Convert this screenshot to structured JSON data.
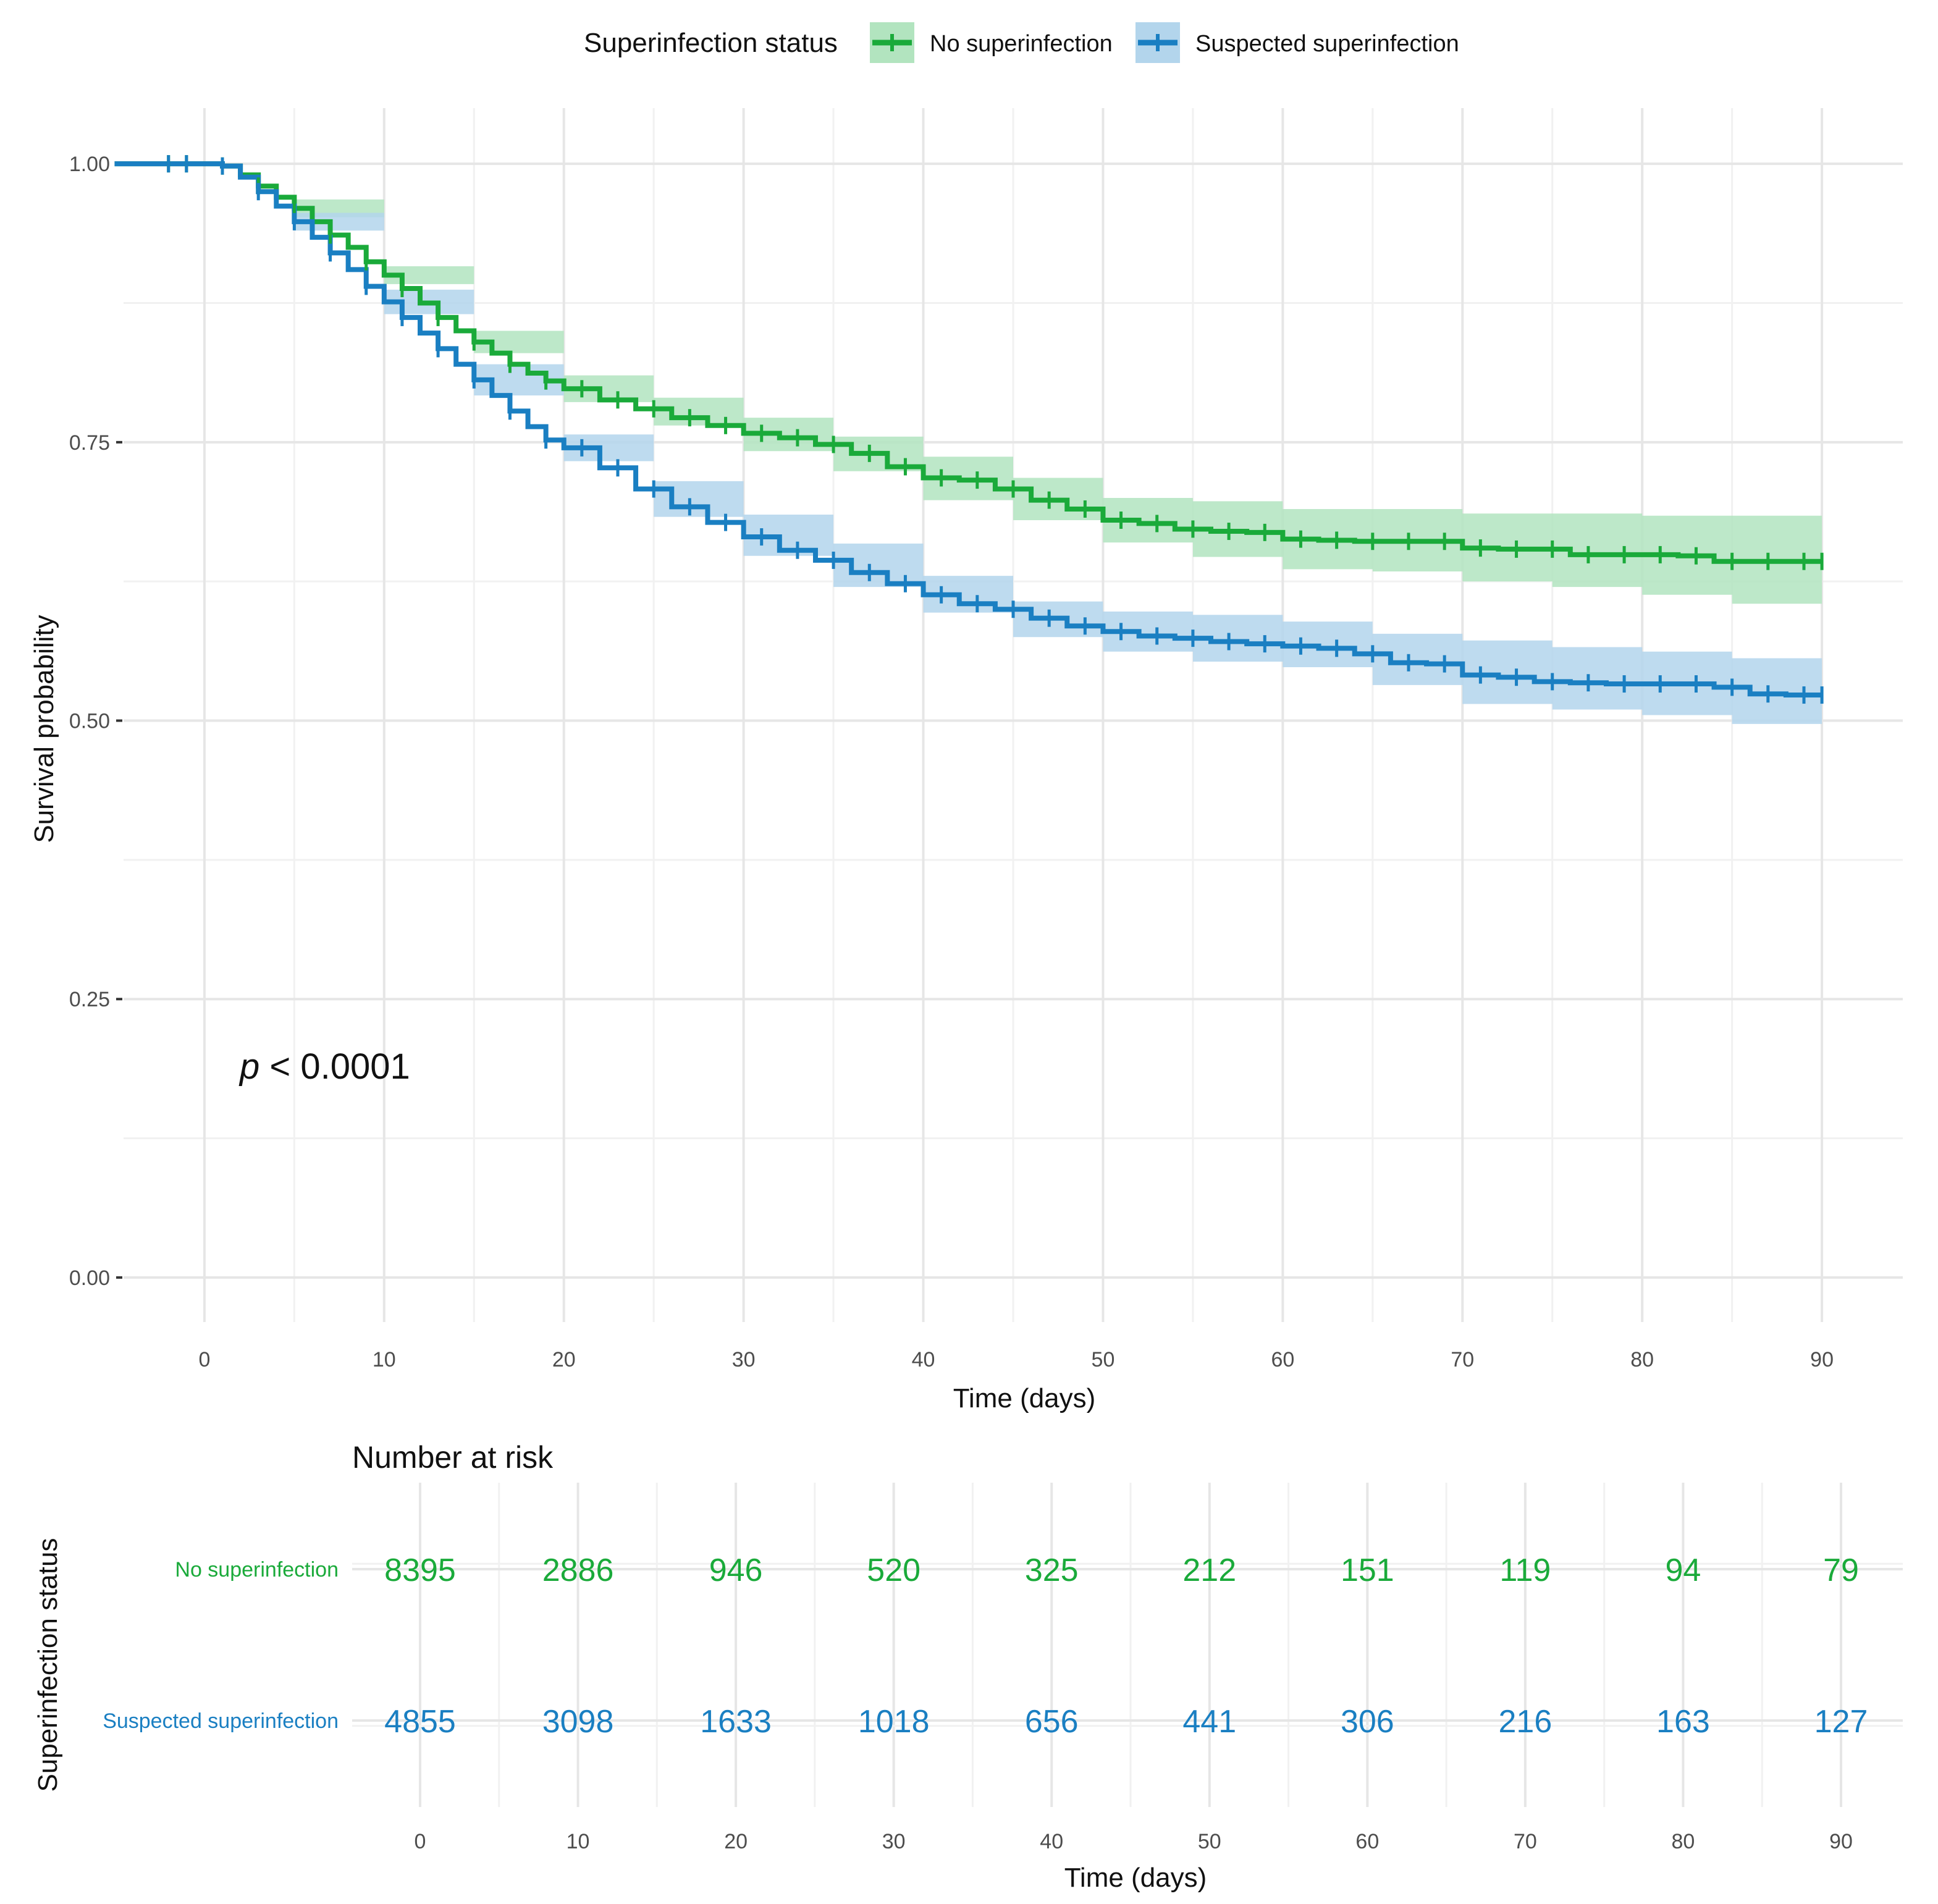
{
  "chart_data": {
    "type": "line",
    "subtype": "kaplan-meier",
    "xlabel": "Time (days)",
    "ylabel": "Survival probability",
    "xlim": [
      -4.5,
      94.5
    ],
    "ylim": [
      -0.04,
      1.05
    ],
    "x_ticks": [
      0,
      10,
      20,
      30,
      40,
      50,
      60,
      70,
      80,
      90
    ],
    "y_ticks": [
      0.0,
      0.25,
      0.5,
      0.75,
      1.0
    ],
    "y_tick_labels": [
      "0.00",
      "0.25",
      "0.50",
      "0.75",
      "1.00"
    ],
    "grid": true,
    "legend": {
      "title": "Superinfection status",
      "position": "top",
      "entries": [
        "No superinfection",
        "Suspected superinfection"
      ]
    },
    "annotation": {
      "prefix": "p",
      "text": " < 0.0001"
    },
    "colors": {
      "No superinfection": "#1aaa3a",
      "Suspected superinfection": "#1a7fc2"
    },
    "band_colors": {
      "No superinfection": "#b2e4bf",
      "Suspected superinfection": "#b3d5ec"
    },
    "series": [
      {
        "name": "No superinfection",
        "points": [
          [
            -5,
            1.0
          ],
          [
            0,
            1.0
          ],
          [
            1,
            0.998
          ],
          [
            2,
            0.99
          ],
          [
            3,
            0.98
          ],
          [
            4,
            0.97
          ],
          [
            5,
            0.96
          ],
          [
            6,
            0.948
          ],
          [
            7,
            0.936
          ],
          [
            8,
            0.925
          ],
          [
            9,
            0.912
          ],
          [
            10,
            0.9
          ],
          [
            11,
            0.888
          ],
          [
            12,
            0.875
          ],
          [
            13,
            0.862
          ],
          [
            14,
            0.85
          ],
          [
            15,
            0.84
          ],
          [
            16,
            0.83
          ],
          [
            17,
            0.82
          ],
          [
            18,
            0.812
          ],
          [
            19,
            0.805
          ],
          [
            20,
            0.798
          ],
          [
            22,
            0.788
          ],
          [
            24,
            0.78
          ],
          [
            26,
            0.772
          ],
          [
            28,
            0.765
          ],
          [
            30,
            0.758
          ],
          [
            32,
            0.754
          ],
          [
            34,
            0.748
          ],
          [
            36,
            0.74
          ],
          [
            38,
            0.728
          ],
          [
            40,
            0.718
          ],
          [
            42,
            0.716
          ],
          [
            44,
            0.708
          ],
          [
            46,
            0.698
          ],
          [
            48,
            0.69
          ],
          [
            50,
            0.68
          ],
          [
            52,
            0.677
          ],
          [
            54,
            0.672
          ],
          [
            56,
            0.67
          ],
          [
            58,
            0.669
          ],
          [
            60,
            0.663
          ],
          [
            62,
            0.662
          ],
          [
            64,
            0.661
          ],
          [
            66,
            0.661
          ],
          [
            68,
            0.661
          ],
          [
            70,
            0.655
          ],
          [
            72,
            0.654
          ],
          [
            74,
            0.654
          ],
          [
            76,
            0.649
          ],
          [
            78,
            0.649
          ],
          [
            80,
            0.649
          ],
          [
            82,
            0.648
          ],
          [
            84,
            0.643
          ],
          [
            86,
            0.643
          ],
          [
            88,
            0.643
          ],
          [
            90,
            0.643
          ]
        ],
        "lower": [
          [
            -5,
            1.0
          ],
          [
            0,
            1.0
          ],
          [
            5,
            0.952
          ],
          [
            10,
            0.892
          ],
          [
            15,
            0.83
          ],
          [
            20,
            0.786
          ],
          [
            25,
            0.765
          ],
          [
            30,
            0.742
          ],
          [
            35,
            0.724
          ],
          [
            40,
            0.698
          ],
          [
            45,
            0.68
          ],
          [
            50,
            0.66
          ],
          [
            55,
            0.647
          ],
          [
            60,
            0.636
          ],
          [
            65,
            0.634
          ],
          [
            70,
            0.625
          ],
          [
            75,
            0.62
          ],
          [
            80,
            0.613
          ],
          [
            85,
            0.605
          ],
          [
            90,
            0.603
          ]
        ],
        "upper": [
          [
            -5,
            1.0
          ],
          [
            0,
            1.0
          ],
          [
            5,
            0.968
          ],
          [
            10,
            0.908
          ],
          [
            15,
            0.85
          ],
          [
            20,
            0.81
          ],
          [
            25,
            0.79
          ],
          [
            30,
            0.772
          ],
          [
            35,
            0.755
          ],
          [
            40,
            0.737
          ],
          [
            45,
            0.718
          ],
          [
            50,
            0.7
          ],
          [
            55,
            0.697
          ],
          [
            60,
            0.69
          ],
          [
            65,
            0.69
          ],
          [
            70,
            0.686
          ],
          [
            75,
            0.686
          ],
          [
            80,
            0.684
          ],
          [
            85,
            0.684
          ],
          [
            90,
            0.684
          ]
        ],
        "censor_times": [
          -2,
          -1,
          1,
          3,
          5,
          7,
          9,
          11,
          13,
          15,
          17,
          19,
          21,
          23,
          25,
          27,
          29,
          31,
          33,
          35,
          37,
          39,
          41,
          43,
          45,
          47,
          49,
          51,
          53,
          55,
          57,
          59,
          61,
          63,
          65,
          67,
          69,
          71,
          73,
          75,
          77,
          79,
          81,
          83,
          85,
          87,
          89,
          90
        ]
      },
      {
        "name": "Suspected superinfection",
        "points": [
          [
            -5,
            1.0
          ],
          [
            0,
            1.0
          ],
          [
            1,
            0.998
          ],
          [
            2,
            0.988
          ],
          [
            3,
            0.975
          ],
          [
            4,
            0.962
          ],
          [
            5,
            0.948
          ],
          [
            6,
            0.934
          ],
          [
            7,
            0.92
          ],
          [
            8,
            0.905
          ],
          [
            9,
            0.89
          ],
          [
            10,
            0.876
          ],
          [
            11,
            0.862
          ],
          [
            12,
            0.848
          ],
          [
            13,
            0.834
          ],
          [
            14,
            0.82
          ],
          [
            15,
            0.806
          ],
          [
            16,
            0.792
          ],
          [
            17,
            0.778
          ],
          [
            18,
            0.764
          ],
          [
            19,
            0.752
          ],
          [
            20,
            0.745
          ],
          [
            22,
            0.727
          ],
          [
            24,
            0.708
          ],
          [
            26,
            0.692
          ],
          [
            28,
            0.678
          ],
          [
            30,
            0.665
          ],
          [
            32,
            0.653
          ],
          [
            34,
            0.644
          ],
          [
            36,
            0.633
          ],
          [
            38,
            0.623
          ],
          [
            40,
            0.613
          ],
          [
            42,
            0.605
          ],
          [
            44,
            0.6
          ],
          [
            46,
            0.592
          ],
          [
            48,
            0.585
          ],
          [
            50,
            0.58
          ],
          [
            52,
            0.576
          ],
          [
            54,
            0.574
          ],
          [
            56,
            0.571
          ],
          [
            58,
            0.569
          ],
          [
            60,
            0.567
          ],
          [
            62,
            0.565
          ],
          [
            64,
            0.56
          ],
          [
            66,
            0.552
          ],
          [
            68,
            0.551
          ],
          [
            70,
            0.541
          ],
          [
            72,
            0.539
          ],
          [
            74,
            0.535
          ],
          [
            76,
            0.534
          ],
          [
            78,
            0.533
          ],
          [
            80,
            0.533
          ],
          [
            82,
            0.533
          ],
          [
            84,
            0.53
          ],
          [
            86,
            0.524
          ],
          [
            88,
            0.523
          ],
          [
            90,
            0.523
          ]
        ],
        "lower": [
          [
            -5,
            1.0
          ],
          [
            0,
            1.0
          ],
          [
            5,
            0.94
          ],
          [
            10,
            0.865
          ],
          [
            15,
            0.792
          ],
          [
            20,
            0.733
          ],
          [
            25,
            0.683
          ],
          [
            30,
            0.648
          ],
          [
            35,
            0.62
          ],
          [
            40,
            0.597
          ],
          [
            45,
            0.575
          ],
          [
            50,
            0.562
          ],
          [
            55,
            0.553
          ],
          [
            60,
            0.548
          ],
          [
            65,
            0.532
          ],
          [
            70,
            0.515
          ],
          [
            75,
            0.51
          ],
          [
            80,
            0.505
          ],
          [
            85,
            0.497
          ],
          [
            90,
            0.49
          ]
        ],
        "upper": [
          [
            -5,
            1.0
          ],
          [
            0,
            1.0
          ],
          [
            5,
            0.956
          ],
          [
            10,
            0.887
          ],
          [
            15,
            0.82
          ],
          [
            20,
            0.757
          ],
          [
            25,
            0.715
          ],
          [
            30,
            0.685
          ],
          [
            35,
            0.659
          ],
          [
            40,
            0.63
          ],
          [
            45,
            0.607
          ],
          [
            50,
            0.598
          ],
          [
            55,
            0.595
          ],
          [
            60,
            0.589
          ],
          [
            65,
            0.578
          ],
          [
            70,
            0.572
          ],
          [
            75,
            0.566
          ],
          [
            80,
            0.562
          ],
          [
            85,
            0.556
          ],
          [
            90,
            0.555
          ]
        ],
        "censor_times": [
          -2,
          -1,
          1,
          3,
          5,
          7,
          9,
          11,
          13,
          15,
          17,
          19,
          21,
          23,
          25,
          27,
          29,
          31,
          33,
          35,
          37,
          39,
          41,
          43,
          45,
          47,
          49,
          51,
          53,
          55,
          57,
          59,
          61,
          63,
          65,
          67,
          69,
          71,
          73,
          75,
          77,
          79,
          81,
          83,
          85,
          87,
          89,
          90
        ]
      }
    ],
    "risk_table": {
      "title": "Number at risk",
      "ylabel": "Superinfection status",
      "xlabel": "Time (days)",
      "times": [
        0,
        10,
        20,
        30,
        40,
        50,
        60,
        70,
        80,
        90
      ],
      "rows": [
        {
          "name": "No superinfection",
          "values": [
            8395,
            2886,
            946,
            520,
            325,
            212,
            151,
            119,
            94,
            79
          ]
        },
        {
          "name": "Suspected superinfection",
          "values": [
            4855,
            3098,
            1633,
            1018,
            656,
            441,
            306,
            216,
            163,
            127
          ]
        }
      ]
    }
  }
}
